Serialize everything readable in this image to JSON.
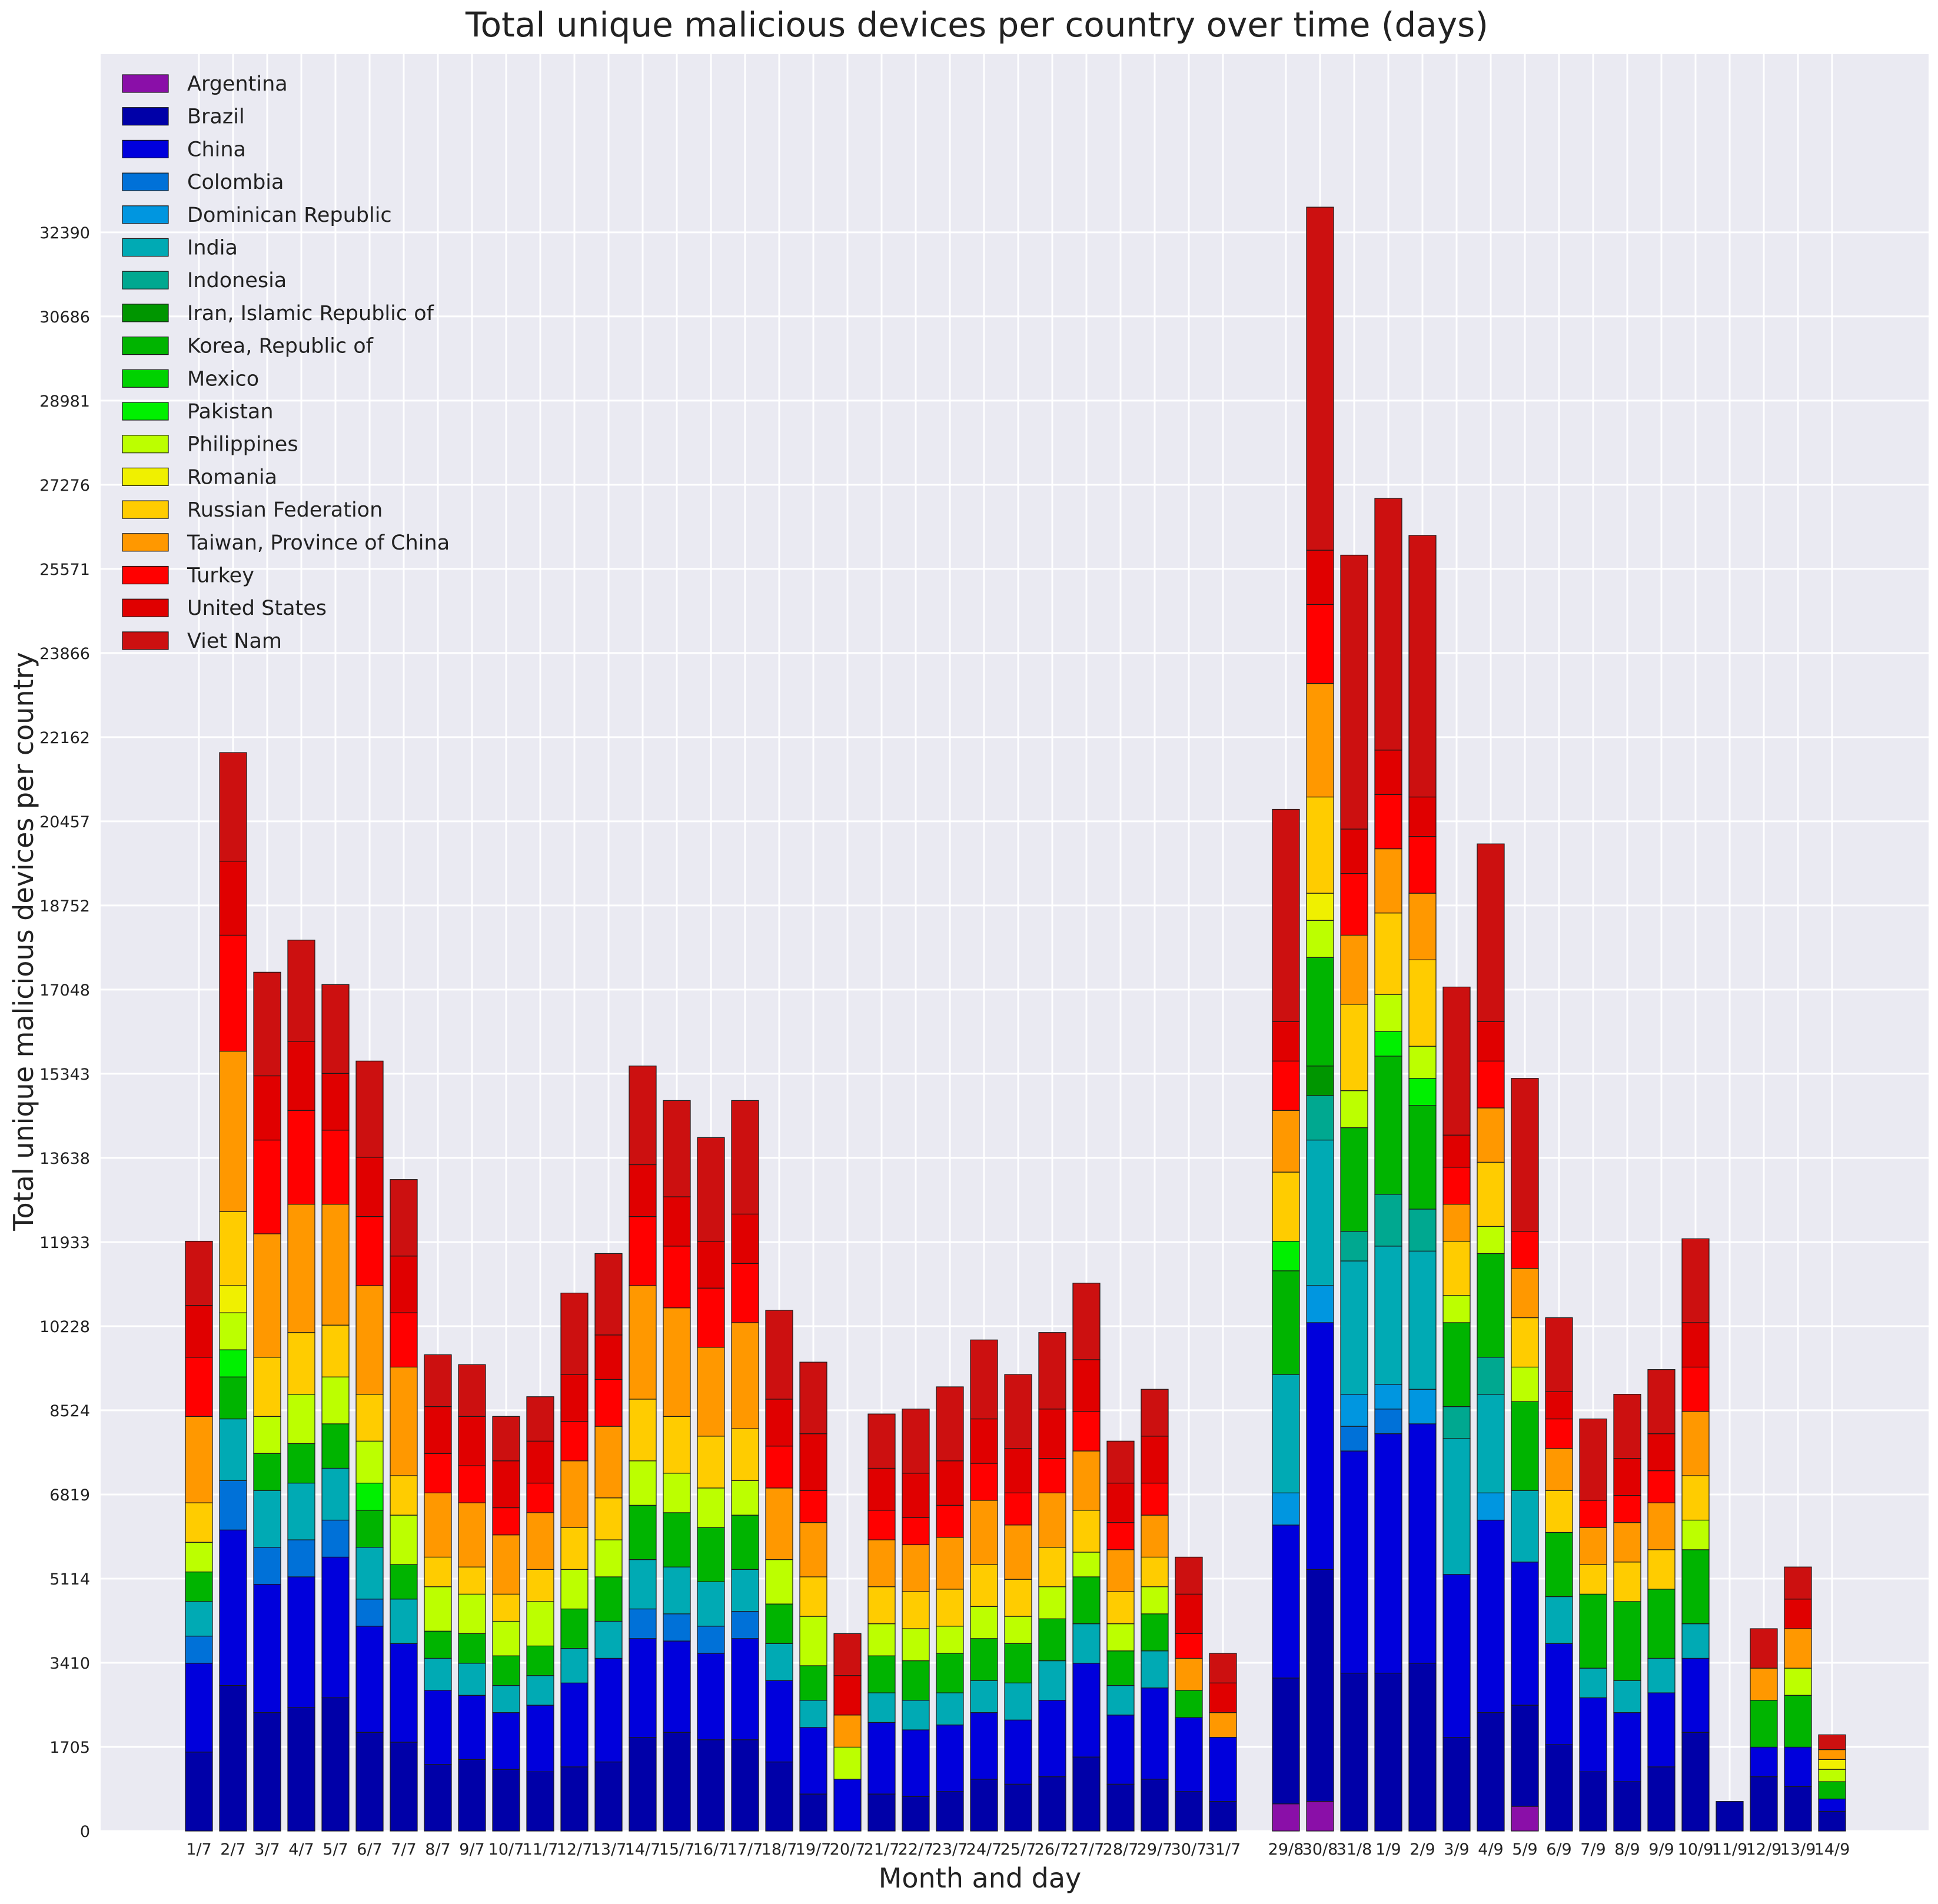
{
  "chart_data": {
    "type": "bar",
    "stacked": true,
    "title": "Total unique malicious devices per country over time (days)",
    "xlabel": "Month and day",
    "ylabel": "Total unique malicious devices per country",
    "ylim": [
      0,
      36000
    ],
    "yticks": [
      0,
      1705,
      3410,
      5114,
      6819,
      8524,
      10228,
      11933,
      13638,
      15343,
      17048,
      18752,
      20457,
      22162,
      23866,
      25571,
      27276,
      28981,
      30686,
      32390
    ],
    "grid": true,
    "legend_position": "top-left",
    "categories": [
      "1/7",
      "2/7",
      "3/7",
      "4/7",
      "5/7",
      "6/7",
      "7/7",
      "8/7",
      "9/7",
      "10/7",
      "11/7",
      "12/7",
      "13/7",
      "14/7",
      "15/7",
      "16/7",
      "17/7",
      "18/7",
      "19/7",
      "20/7",
      "21/7",
      "22/7",
      "23/7",
      "24/7",
      "25/7",
      "26/7",
      "27/7",
      "28/7",
      "29/7",
      "30/7",
      "31/7",
      "29/8",
      "30/8",
      "31/8",
      "1/9",
      "2/9",
      "3/9",
      "4/9",
      "5/9",
      "6/9",
      "7/9",
      "8/9",
      "9/9",
      "10/9",
      "11/9",
      "12/9",
      "13/9",
      "14/9"
    ],
    "series": [
      {
        "name": "Argentina",
        "color": "#8a0fa8",
        "values": [
          0,
          0,
          0,
          0,
          0,
          0,
          0,
          0,
          0,
          0,
          0,
          0,
          0,
          0,
          0,
          0,
          0,
          0,
          0,
          0,
          0,
          0,
          0,
          0,
          0,
          0,
          0,
          0,
          0,
          0,
          0,
          550,
          600,
          0,
          0,
          0,
          0,
          0,
          500,
          0,
          0,
          0,
          0,
          0,
          0,
          0,
          0,
          0
        ]
      },
      {
        "name": "Brazil",
        "color": "#0000a8",
        "values": [
          1600,
          2950,
          2400,
          2500,
          2700,
          2000,
          1800,
          1350,
          1450,
          1250,
          1200,
          1300,
          1400,
          1900,
          2000,
          1850,
          1850,
          1400,
          750,
          0,
          750,
          700,
          800,
          1050,
          950,
          1100,
          1500,
          950,
          1050,
          800,
          600,
          2550,
          4700,
          3200,
          3200,
          3400,
          1900,
          2400,
          2050,
          1750,
          1200,
          1000,
          1300,
          2000,
          600,
          1100,
          900,
          400
        ]
      },
      {
        "name": "China",
        "color": "#0000dc",
        "values": [
          1800,
          3150,
          2600,
          2650,
          2850,
          2150,
          2000,
          1500,
          1300,
          1150,
          1350,
          1700,
          2100,
          2000,
          1850,
          1750,
          2050,
          1650,
          1350,
          1050,
          1450,
          1350,
          1350,
          1350,
          1300,
          1550,
          1900,
          1400,
          1850,
          1500,
          1300,
          3100,
          5000,
          4500,
          4850,
          4850,
          3300,
          3900,
          2900,
          2050,
          1500,
          1400,
          1500,
          1500,
          0,
          600,
          800,
          250
        ]
      },
      {
        "name": "Colombia",
        "color": "#0071d8",
        "values": [
          550,
          1000,
          750,
          750,
          750,
          550,
          0,
          0,
          0,
          0,
          0,
          0,
          0,
          600,
          550,
          550,
          550,
          0,
          0,
          0,
          0,
          0,
          0,
          0,
          0,
          0,
          0,
          0,
          0,
          0,
          0,
          0,
          0,
          500,
          500,
          0,
          0,
          0,
          0,
          0,
          0,
          0,
          0,
          0,
          0,
          0,
          0,
          0
        ]
      },
      {
        "name": "Dominican Republic",
        "color": "#0096e0",
        "values": [
          0,
          0,
          0,
          0,
          0,
          0,
          0,
          0,
          0,
          0,
          0,
          0,
          0,
          0,
          0,
          0,
          0,
          0,
          0,
          0,
          0,
          0,
          0,
          0,
          0,
          0,
          0,
          0,
          0,
          0,
          0,
          650,
          750,
          650,
          500,
          700,
          0,
          550,
          0,
          0,
          0,
          0,
          0,
          0,
          0,
          0,
          0,
          0
        ]
      },
      {
        "name": "India",
        "color": "#00aab4",
        "values": [
          700,
          1250,
          1150,
          1150,
          1050,
          1050,
          900,
          650,
          650,
          550,
          600,
          700,
          750,
          1000,
          950,
          900,
          850,
          750,
          550,
          0,
          600,
          600,
          650,
          650,
          750,
          800,
          800,
          600,
          750,
          0,
          0,
          2400,
          2950,
          2700,
          2800,
          2800,
          2750,
          2000,
          1450,
          950,
          600,
          650,
          700,
          700,
          0,
          0,
          0,
          0
        ]
      },
      {
        "name": "Indonesia",
        "color": "#00a890",
        "values": [
          0,
          0,
          0,
          0,
          0,
          0,
          0,
          0,
          0,
          0,
          0,
          0,
          0,
          0,
          0,
          0,
          0,
          0,
          0,
          0,
          0,
          0,
          0,
          0,
          0,
          0,
          0,
          0,
          0,
          0,
          0,
          0,
          900,
          600,
          1050,
          850,
          650,
          750,
          0,
          0,
          0,
          0,
          0,
          0,
          0,
          0,
          0,
          0
        ]
      },
      {
        "name": "Iran, Islamic Republic of",
        "color": "#009600",
        "values": [
          0,
          0,
          0,
          0,
          0,
          0,
          0,
          0,
          0,
          0,
          0,
          0,
          0,
          0,
          0,
          0,
          0,
          0,
          0,
          0,
          0,
          0,
          0,
          0,
          0,
          0,
          0,
          0,
          0,
          0,
          0,
          0,
          600,
          0,
          0,
          0,
          0,
          0,
          0,
          0,
          0,
          0,
          0,
          0,
          0,
          0,
          0,
          0
        ]
      },
      {
        "name": "Korea, Republic of",
        "color": "#00b400",
        "values": [
          600,
          850,
          750,
          800,
          900,
          750,
          700,
          550,
          600,
          600,
          600,
          800,
          900,
          1100,
          1100,
          1100,
          1100,
          800,
          700,
          0,
          750,
          800,
          800,
          850,
          800,
          850,
          950,
          700,
          750,
          550,
          0,
          2100,
          2200,
          2100,
          2800,
          2100,
          1700,
          2100,
          1800,
          1300,
          1500,
          1600,
          1400,
          1500,
          0,
          950,
          1050,
          350
        ]
      },
      {
        "name": "Mexico",
        "color": "#00d200",
        "values": [
          0,
          0,
          0,
          0,
          0,
          0,
          0,
          0,
          0,
          0,
          0,
          0,
          0,
          0,
          0,
          0,
          0,
          0,
          0,
          0,
          0,
          0,
          0,
          0,
          0,
          0,
          0,
          0,
          0,
          0,
          0,
          0,
          0,
          0,
          0,
          0,
          0,
          0,
          0,
          0,
          0,
          0,
          0,
          0,
          0,
          0,
          0,
          0
        ]
      },
      {
        "name": "Pakistan",
        "color": "#00f000",
        "values": [
          0,
          550,
          0,
          0,
          0,
          550,
          0,
          0,
          0,
          0,
          0,
          0,
          0,
          0,
          0,
          0,
          0,
          0,
          0,
          0,
          0,
          0,
          0,
          0,
          0,
          0,
          0,
          0,
          0,
          0,
          0,
          600,
          0,
          0,
          500,
          550,
          0,
          0,
          0,
          0,
          0,
          0,
          0,
          0,
          0,
          0,
          0,
          0
        ]
      },
      {
        "name": "Philippines",
        "color": "#bcff00",
        "values": [
          600,
          750,
          750,
          1000,
          950,
          850,
          1000,
          900,
          800,
          700,
          900,
          800,
          750,
          900,
          800,
          800,
          700,
          900,
          1000,
          650,
          650,
          650,
          550,
          650,
          550,
          650,
          500,
          550,
          550,
          0,
          0,
          0,
          750,
          750,
          750,
          650,
          550,
          550,
          700,
          0,
          0,
          0,
          0,
          600,
          0,
          0,
          550,
          250
        ]
      },
      {
        "name": "Romania",
        "color": "#f0f000",
        "values": [
          0,
          550,
          0,
          0,
          0,
          0,
          0,
          0,
          0,
          0,
          0,
          0,
          0,
          0,
          0,
          0,
          0,
          0,
          0,
          0,
          0,
          0,
          0,
          0,
          0,
          0,
          0,
          0,
          0,
          0,
          0,
          0,
          550,
          0,
          0,
          0,
          0,
          0,
          0,
          0,
          0,
          0,
          0,
          0,
          0,
          0,
          0,
          200
        ]
      },
      {
        "name": "Russian Federation",
        "color": "#ffcc00",
        "values": [
          800,
          1500,
          1200,
          1250,
          1050,
          950,
          800,
          600,
          550,
          550,
          650,
          850,
          850,
          1250,
          1150,
          1050,
          1050,
          0,
          800,
          0,
          750,
          750,
          750,
          850,
          750,
          800,
          850,
          650,
          600,
          0,
          0,
          1400,
          1950,
          1750,
          1650,
          1750,
          1100,
          1300,
          1000,
          850,
          600,
          800,
          800,
          900,
          0,
          0,
          0,
          0
        ]
      },
      {
        "name": "Taiwan, Province of China",
        "color": "#ff9800",
        "values": [
          1750,
          3250,
          2500,
          2600,
          2450,
          2200,
          2200,
          1300,
          1300,
          1200,
          1150,
          1350,
          1450,
          2300,
          2200,
          1800,
          2150,
          1450,
          1100,
          650,
          950,
          950,
          1050,
          1300,
          1100,
          1100,
          1200,
          850,
          850,
          650,
          500,
          1250,
          2300,
          1400,
          1300,
          1350,
          750,
          1100,
          1000,
          850,
          750,
          800,
          950,
          1300,
          0,
          650,
          800,
          200
        ]
      },
      {
        "name": "Turkey",
        "color": "#ff0000",
        "values": [
          1200,
          2350,
          1900,
          1900,
          1500,
          1400,
          1100,
          800,
          750,
          550,
          600,
          800,
          950,
          1400,
          1250,
          1200,
          1200,
          850,
          650,
          0,
          600,
          550,
          650,
          750,
          650,
          700,
          800,
          550,
          650,
          500,
          0,
          1000,
          1600,
          1250,
          1100,
          1150,
          750,
          950,
          750,
          600,
          550,
          550,
          650,
          900,
          0,
          0,
          0,
          0
        ]
      },
      {
        "name": "United States",
        "color": "#e00000",
        "values": [
          1050,
          1500,
          1300,
          1400,
          1150,
          1200,
          1150,
          950,
          1000,
          950,
          850,
          950,
          900,
          1050,
          1000,
          950,
          1000,
          950,
          1150,
          800,
          850,
          900,
          900,
          900,
          900,
          1000,
          1050,
          800,
          950,
          800,
          600,
          800,
          1100,
          900,
          900,
          800,
          650,
          800,
          0,
          550,
          0,
          750,
          750,
          900,
          0,
          0,
          600,
          0
        ]
      },
      {
        "name": "Viet Nam",
        "color": "#cc1010",
        "values": [
          1300,
          2200,
          2100,
          2050,
          1800,
          1950,
          1550,
          1050,
          1050,
          900,
          900,
          1650,
          1650,
          2000,
          1950,
          2100,
          2300,
          1800,
          1450,
          850,
          1100,
          1300,
          1500,
          1600,
          1500,
          1550,
          1550,
          850,
          950,
          750,
          600,
          4300,
          6950,
          5550,
          5100,
          5300,
          3000,
          3600,
          3100,
          1500,
          1650,
          1300,
          1300,
          1700,
          0,
          800,
          650,
          300
        ]
      }
    ]
  }
}
